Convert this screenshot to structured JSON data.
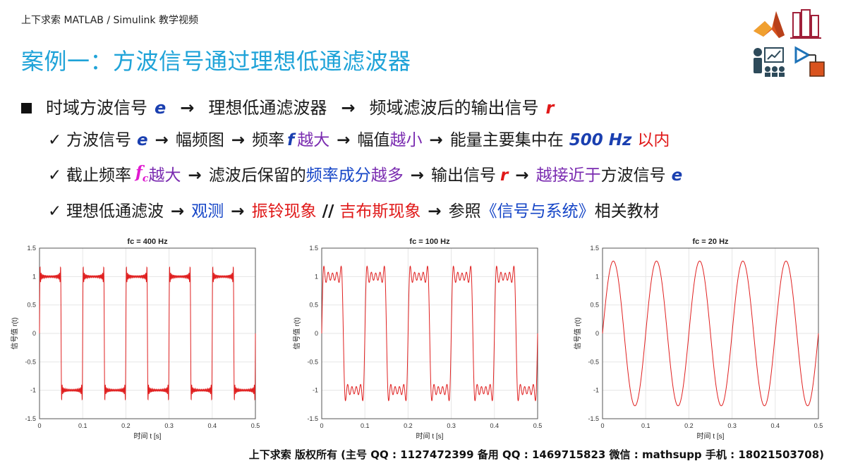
{
  "header": {
    "text": "上下求索 MATLAB / Simulink 教学视频"
  },
  "title": {
    "text": "案例一：方波信号通过理想低通滤波器"
  },
  "icons": [
    "matlab-logo-icon",
    "books-icon",
    "presentation-icon",
    "simulink-icon"
  ],
  "bullet": {
    "part1": "时域方波信号",
    "e": "e",
    "arrow": "→",
    "part2": "理想低通滤波器",
    "part3": "频域滤波后的输出信号",
    "r": "r"
  },
  "line1": {
    "a": "方波信号",
    "e": "e",
    "b": "幅频图",
    "c": "频率",
    "f": "f",
    "d": "越大",
    "g": "幅值",
    "h": "越小",
    "i": "能量主要集中在",
    "freq": "500 Hz",
    "j": "以内"
  },
  "line2": {
    "a": "截止频率",
    "fc": "f",
    "fc_sub": "c",
    "b": "越大",
    "c": "滤波后保留的",
    "d": "频率成分",
    "e2": "越多",
    "f": "输出信号",
    "r": "r",
    "g": "越接近于",
    "h": "方波信号",
    "e": "e"
  },
  "line3": {
    "a": "理想低通滤波",
    "b": "观测",
    "c": "振铃现象",
    "sep": "//",
    "d": "吉布斯现象",
    "e": "参照",
    "f": "《信号与系统》",
    "g": "相关教材"
  },
  "chart_data": [
    {
      "type": "line",
      "title": "fc = 400 Hz",
      "xlabel": "时间 t [s]",
      "ylabel": "信号值 r(t)",
      "xlim": [
        0,
        0.5
      ],
      "ylim": [
        -1.5,
        1.5
      ],
      "xticks": [
        "0",
        "0.1",
        "0.2",
        "0.3",
        "0.4",
        "0.5"
      ],
      "yticks": [
        "1.5",
        "1",
        "0.5",
        "0",
        "-0.5",
        "-1",
        "-1.5"
      ],
      "square_frequency_hz": 10,
      "cutoff_hz": 400,
      "grid": true,
      "color": "#e02020"
    },
    {
      "type": "line",
      "title": "fc = 100 Hz",
      "xlabel": "时间 t [s]",
      "ylabel": "信号值 r(t)",
      "xlim": [
        0,
        0.5
      ],
      "ylim": [
        -1.5,
        1.5
      ],
      "xticks": [
        "0",
        "0.1",
        "0.2",
        "0.3",
        "0.4",
        "0.5"
      ],
      "yticks": [
        "1.5",
        "1",
        "0.5",
        "0",
        "-0.5",
        "-1",
        "-1.5"
      ],
      "square_frequency_hz": 10,
      "cutoff_hz": 100,
      "grid": true,
      "color": "#e02020"
    },
    {
      "type": "line",
      "title": "fc = 20 Hz",
      "xlabel": "时间 t [s]",
      "ylabel": "信号值 r(t)",
      "xlim": [
        0,
        0.5
      ],
      "ylim": [
        -1.5,
        1.5
      ],
      "xticks": [
        "0",
        "0.1",
        "0.2",
        "0.3",
        "0.4",
        "0.5"
      ],
      "yticks": [
        "1.5",
        "1",
        "0.5",
        "0",
        "-0.5",
        "-1",
        "-1.5"
      ],
      "square_frequency_hz": 10,
      "cutoff_hz": 20,
      "grid": true,
      "color": "#e02020"
    }
  ],
  "footer": {
    "text": "上下求索 版权所有 (主号 QQ : 1127472399   备用 QQ : 1469715823   微信 : mathsupp   手机 : 18021503708)"
  }
}
